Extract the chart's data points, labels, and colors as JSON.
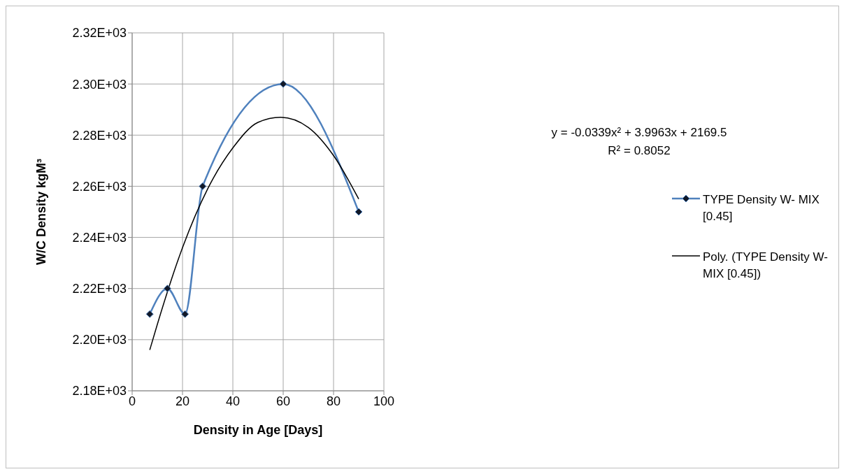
{
  "chart_data": {
    "type": "line",
    "xlabel": "Density in Age [Days]",
    "ylabel": "W/C Density kgM³",
    "xlim": [
      0,
      100
    ],
    "xticks": [
      0,
      20,
      40,
      60,
      80,
      100
    ],
    "ylim": [
      2180,
      2320
    ],
    "yticks": [
      {
        "value": 2180,
        "label": "2.18E+03"
      },
      {
        "value": 2200,
        "label": "2.20E+03"
      },
      {
        "value": 2220,
        "label": "2.22E+03"
      },
      {
        "value": 2240,
        "label": "2.24E+03"
      },
      {
        "value": 2260,
        "label": "2.26E+03"
      },
      {
        "value": 2280,
        "label": "2.28E+03"
      },
      {
        "value": 2300,
        "label": "2.30E+03"
      },
      {
        "value": 2320,
        "label": "2.32E+03"
      }
    ],
    "grid": true,
    "legend": "right",
    "annotations": [
      "y = -0.0339x² + 3.9963x + 2169.5",
      "R² = 0.8052"
    ],
    "series": [
      {
        "name": "TYPE Density  W- MIX [0.45]",
        "color": "#4f81bd",
        "marker": "diamond",
        "x": [
          7,
          14,
          21,
          28,
          60,
          90
        ],
        "values": [
          2210,
          2220,
          2210,
          2260,
          2300,
          2250
        ]
      },
      {
        "name": "Poly. (TYPE Density  W- MIX [0.45])",
        "color": "#000000",
        "marker": "none",
        "x": [
          7,
          10,
          20,
          30,
          40,
          50,
          59,
          70,
          80,
          90
        ],
        "values": [
          2196,
          2206,
          2236,
          2259,
          2275,
          2285,
          2287,
          2283,
          2272,
          2255
        ]
      }
    ]
  }
}
